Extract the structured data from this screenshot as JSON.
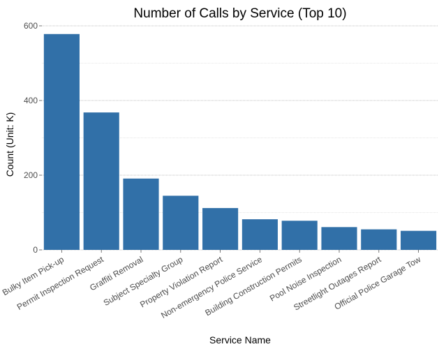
{
  "chart_data": {
    "type": "bar",
    "title": "Number of Calls by Service (Top 10)",
    "xlabel": "Service Name",
    "ylabel": "Count (Unit: K)",
    "categories": [
      "Bulky Item Pick-up",
      "Permit Inspection Request",
      "Graffiti Removal",
      "Subject Specialty Group",
      "Property Violation Report",
      "Non-emergency Police Service",
      "Building Construction Permits",
      "Pool Noise Inspection",
      "Streetlight Outages Report",
      "Official Police Garage Tow"
    ],
    "values": [
      578,
      368,
      191,
      145,
      112,
      82,
      78,
      61,
      55,
      51
    ],
    "ylim": [
      0,
      600
    ],
    "yticks": [
      0,
      200,
      400,
      600
    ],
    "grid": true,
    "legend": "none",
    "bar_color": "#3170a8"
  }
}
